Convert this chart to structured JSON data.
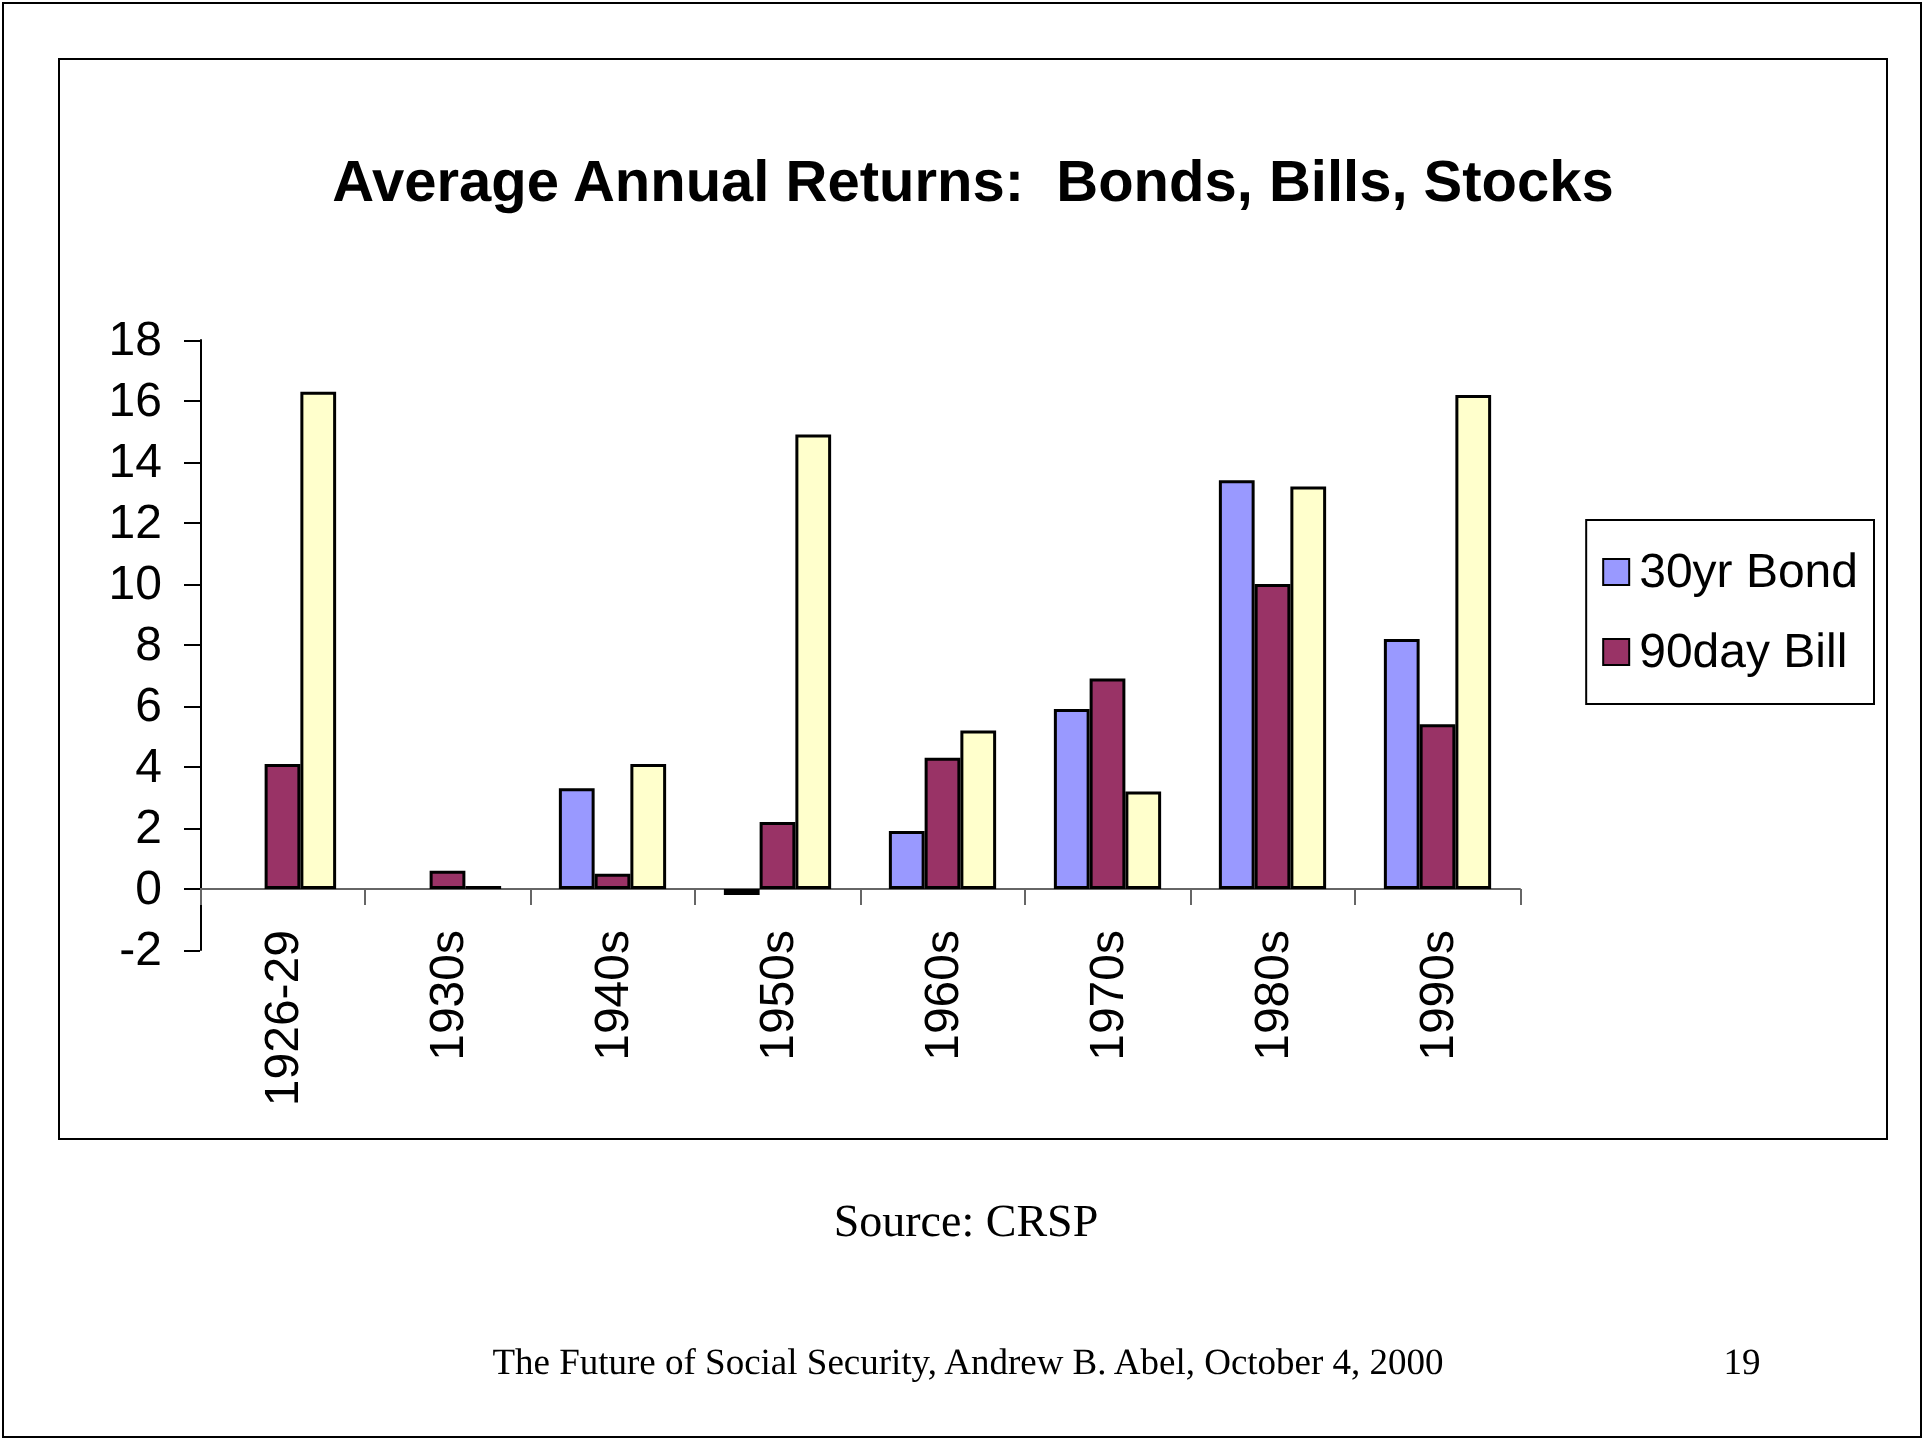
{
  "chart_data": {
    "type": "bar",
    "title": "Average Annual Returns:  Bonds, Bills, Stocks",
    "categories": [
      "1926-29",
      "1930s",
      "1940s",
      "1950s",
      "1960s",
      "1970s",
      "1980s",
      "1990s"
    ],
    "series": [
      {
        "name": "30yr Bond",
        "color": "#9999ff",
        "values": [
          null,
          null,
          3.3,
          -0.2,
          1.9,
          5.9,
          13.4,
          8.2
        ]
      },
      {
        "name": "90day Bill",
        "color": "#993366",
        "values": [
          4.1,
          0.6,
          0.5,
          2.2,
          4.3,
          6.9,
          10.0,
          5.4
        ]
      },
      {
        "color": "#ffffcc",
        "values": [
          16.3,
          0.1,
          4.1,
          14.9,
          5.2,
          3.2,
          13.2,
          16.2
        ]
      }
    ],
    "ylim": [
      -2,
      18
    ],
    "yticks": [
      -2,
      0,
      2,
      4,
      6,
      8,
      10,
      12,
      14,
      16,
      18
    ],
    "legend": "right",
    "annotations": [
      "Source: CRSP",
      "The Future of Social Security, Andrew B. Abel, October 4, 2000",
      "19"
    ]
  }
}
